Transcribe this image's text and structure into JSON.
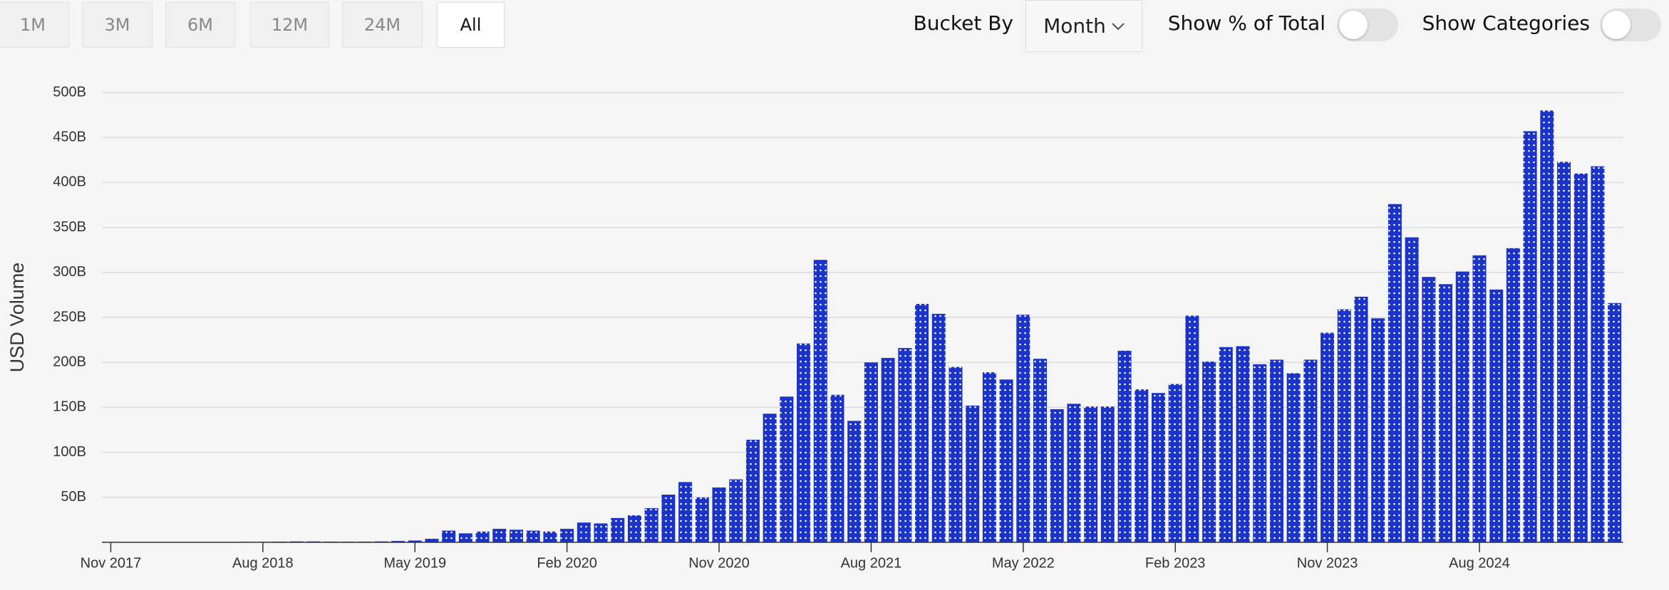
{
  "controls": {
    "ranges": [
      "1M",
      "3M",
      "6M",
      "12M",
      "24M",
      "All"
    ],
    "selected": "All",
    "bucket_label": "Bucket By",
    "bucket_value": "Month",
    "toggles": [
      "Show % of Total",
      "Show Categories"
    ]
  },
  "chart_data": {
    "type": "bar",
    "y_label": "USD Volume",
    "color": "#1b33c8",
    "grid": true,
    "categories": [
      "Nov 2017",
      null,
      null,
      null,
      null,
      null,
      null,
      null,
      null,
      "Aug 2018",
      null,
      null,
      null,
      null,
      null,
      null,
      null,
      null,
      "May 2019",
      null,
      null,
      null,
      null,
      null,
      null,
      null,
      null,
      "Feb 2020",
      null,
      null,
      null,
      null,
      null,
      null,
      null,
      null,
      "Nov 2020",
      null,
      null,
      null,
      null,
      null,
      null,
      null,
      null,
      "Aug 2021",
      null,
      null,
      null,
      null,
      null,
      null,
      null,
      null,
      "May 2022",
      null,
      null,
      null,
      null,
      null,
      null,
      null,
      null,
      "Feb 2023",
      null,
      null,
      null,
      null,
      null,
      null,
      null,
      null,
      "Nov 2023",
      null,
      null,
      null,
      null,
      null,
      null,
      null,
      null,
      "Aug 2024",
      null,
      null,
      null,
      null,
      null,
      null,
      null,
      null
    ],
    "values": [
      0,
      0,
      0,
      0,
      0,
      0,
      0,
      0,
      0.5,
      0.5,
      0.8,
      1,
      1,
      0.8,
      0.7,
      0.8,
      1,
      1.5,
      2,
      4,
      13,
      10,
      12,
      15,
      14,
      13,
      12,
      15,
      22,
      21,
      27,
      30,
      38,
      53,
      67,
      50,
      61,
      70,
      114,
      143,
      162,
      221,
      314,
      164,
      135,
      200,
      205,
      216,
      265,
      254,
      195,
      152,
      189,
      181,
      253,
      204,
      148,
      154,
      151,
      151,
      213,
      170,
      166,
      176,
      252,
      201,
      217,
      218,
      198,
      203,
      188,
      203,
      233,
      259,
      273,
      249,
      376,
      339,
      295,
      287,
      301,
      319,
      281,
      327,
      457,
      480,
      423,
      410,
      418,
      266
    ],
    "ylim": [
      0,
      500
    ],
    "yticks": [
      {
        "value": 50,
        "label": "50B"
      },
      {
        "value": 100,
        "label": "100B"
      },
      {
        "value": 150,
        "label": "150B"
      },
      {
        "value": 200,
        "label": "200B"
      },
      {
        "value": 250,
        "label": "250B"
      },
      {
        "value": 300,
        "label": "300B"
      },
      {
        "value": 350,
        "label": "350B"
      },
      {
        "value": 400,
        "label": "400B"
      },
      {
        "value": 450,
        "label": "450B"
      },
      {
        "value": 500,
        "label": "500B"
      }
    ]
  }
}
